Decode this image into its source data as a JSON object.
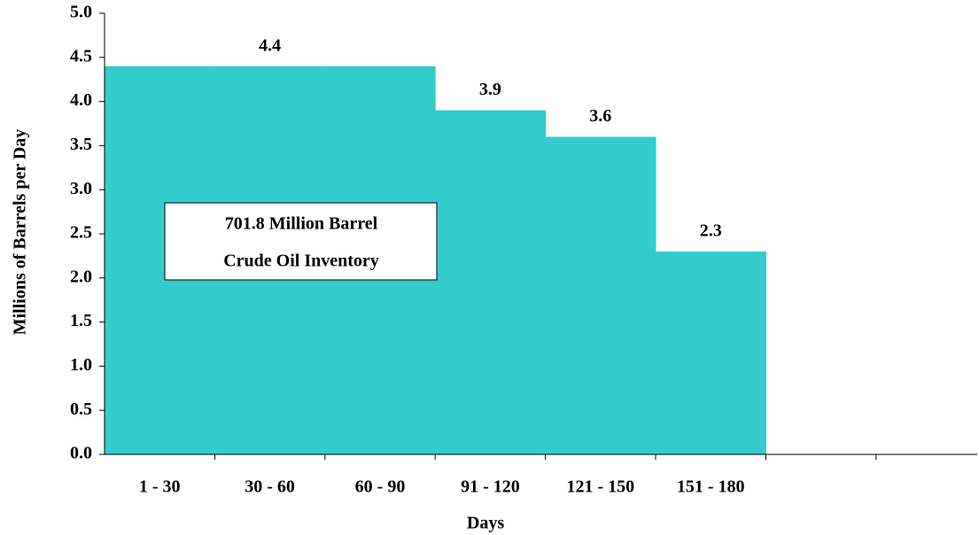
{
  "chart_data": {
    "type": "bar",
    "categories": [
      "1 - 30",
      "30 - 60",
      "60 - 90",
      "91 - 120",
      "121 - 150",
      "151 - 180",
      null,
      null
    ],
    "values": [
      4.4,
      4.4,
      4.4,
      3.9,
      3.6,
      2.3,
      null,
      null
    ],
    "value_labels": [
      null,
      "4.4",
      null,
      "3.9",
      "3.6",
      "2.3",
      null,
      null
    ],
    "color": "#33cccc",
    "x_label": "Days",
    "y_label": "Millions of Barrels per Day",
    "annotation": [
      "701.8 Million Barrel",
      "Crude Oil Inventory"
    ],
    "ylim": [
      0,
      5
    ],
    "yticks": [
      {
        "value": 0,
        "label": "0.0"
      },
      0.5,
      {
        "value": 1,
        "label": "1.0"
      },
      1.5,
      {
        "value": 2,
        "label": "2.0"
      },
      2.5,
      {
        "value": 3,
        "label": "3.0"
      },
      3.5,
      {
        "value": 4,
        "label": "4.0"
      },
      4.5,
      {
        "value": 5,
        "label": "5.0"
      }
    ],
    "grid": false
  }
}
